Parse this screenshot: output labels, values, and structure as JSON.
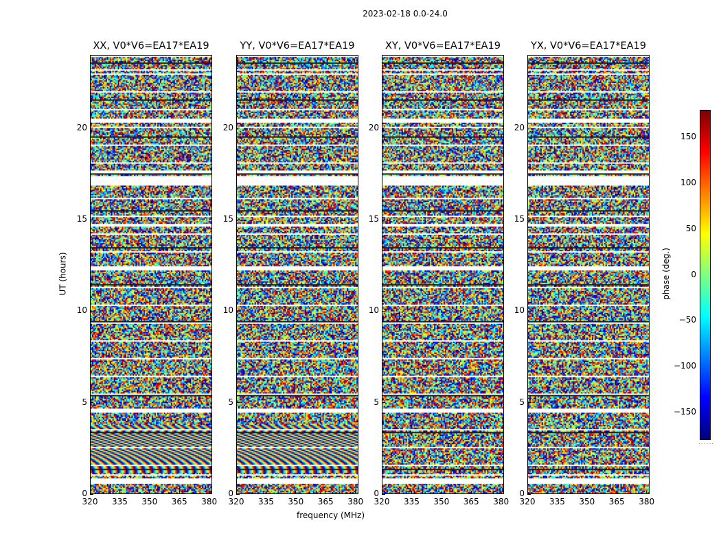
{
  "suptitle": "2023-02-18 0.0-24.0",
  "chart_data": {
    "type": "heatmap",
    "title": "2023-02-18 0.0-24.0",
    "xlabel": "frequency (MHz)",
    "ylabel": "UT (hours)",
    "xlim": [
      320,
      381.5
    ],
    "ylim": [
      0,
      24
    ],
    "xticks": [
      320,
      335,
      350,
      365,
      380
    ],
    "yticks": [
      0,
      5,
      10,
      15,
      20
    ],
    "panels": [
      {
        "name": "XX",
        "title": "XX, V0*V6=EA17*EA19"
      },
      {
        "name": "YY",
        "title": "YY, V0*V6=EA17*EA19"
      },
      {
        "name": "XY",
        "title": "XY, V0*V6=EA17*EA19"
      },
      {
        "name": "YX",
        "title": "YX, V0*V6=EA17*EA19"
      }
    ],
    "colorbar": {
      "label": "phase (deg.)",
      "range": [
        -180,
        180
      ],
      "ticks": [
        -150,
        -100,
        -50,
        0,
        50,
        100,
        150
      ],
      "tick_labels": [
        "−150",
        "−100",
        "−50",
        "0",
        "50",
        "100",
        "150"
      ],
      "colormap": "jet"
    },
    "flagged_ut_ranges": [
      [
        0.6,
        0.85
      ],
      [
        1.0,
        1.1
      ],
      [
        4.55,
        4.7
      ],
      [
        12.3,
        12.45
      ],
      [
        14.7,
        14.85
      ],
      [
        16.9,
        17.4
      ],
      [
        17.6,
        17.7
      ],
      [
        20.4,
        20.6
      ],
      [
        23.2,
        23.3
      ]
    ]
  }
}
